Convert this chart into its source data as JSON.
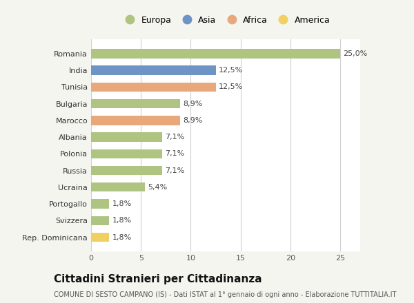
{
  "countries": [
    "Romania",
    "India",
    "Tunisia",
    "Bulgaria",
    "Marocco",
    "Albania",
    "Polonia",
    "Russia",
    "Ucraina",
    "Portogallo",
    "Svizzera",
    "Rep. Dominicana"
  ],
  "values": [
    25.0,
    12.5,
    12.5,
    8.9,
    8.9,
    7.1,
    7.1,
    7.1,
    5.4,
    1.8,
    1.8,
    1.8
  ],
  "labels": [
    "25,0%",
    "12,5%",
    "12,5%",
    "8,9%",
    "8,9%",
    "7,1%",
    "7,1%",
    "7,1%",
    "5,4%",
    "1,8%",
    "1,8%",
    "1,8%"
  ],
  "colors": [
    "#aec480",
    "#6e93c5",
    "#e8a87c",
    "#aec480",
    "#e8a87c",
    "#aec480",
    "#aec480",
    "#aec480",
    "#aec480",
    "#aec480",
    "#aec480",
    "#f0d060"
  ],
  "continent_colors": {
    "Europa": "#aec480",
    "Asia": "#6e93c5",
    "Africa": "#e8a87c",
    "America": "#f0d060"
  },
  "xlim": [
    0,
    27
  ],
  "xticks": [
    0,
    5,
    10,
    15,
    20,
    25
  ],
  "title": "Cittadini Stranieri per Cittadinanza",
  "subtitle": "COMUNE DI SESTO CAMPANO (IS) - Dati ISTAT al 1° gennaio di ogni anno - Elaborazione TUTTITALIA.IT",
  "background_color": "#f5f5f0",
  "bar_background": "#ffffff",
  "grid_color": "#d0d0d0",
  "title_fontsize": 11,
  "subtitle_fontsize": 7,
  "label_fontsize": 8,
  "tick_fontsize": 8,
  "legend_fontsize": 9
}
